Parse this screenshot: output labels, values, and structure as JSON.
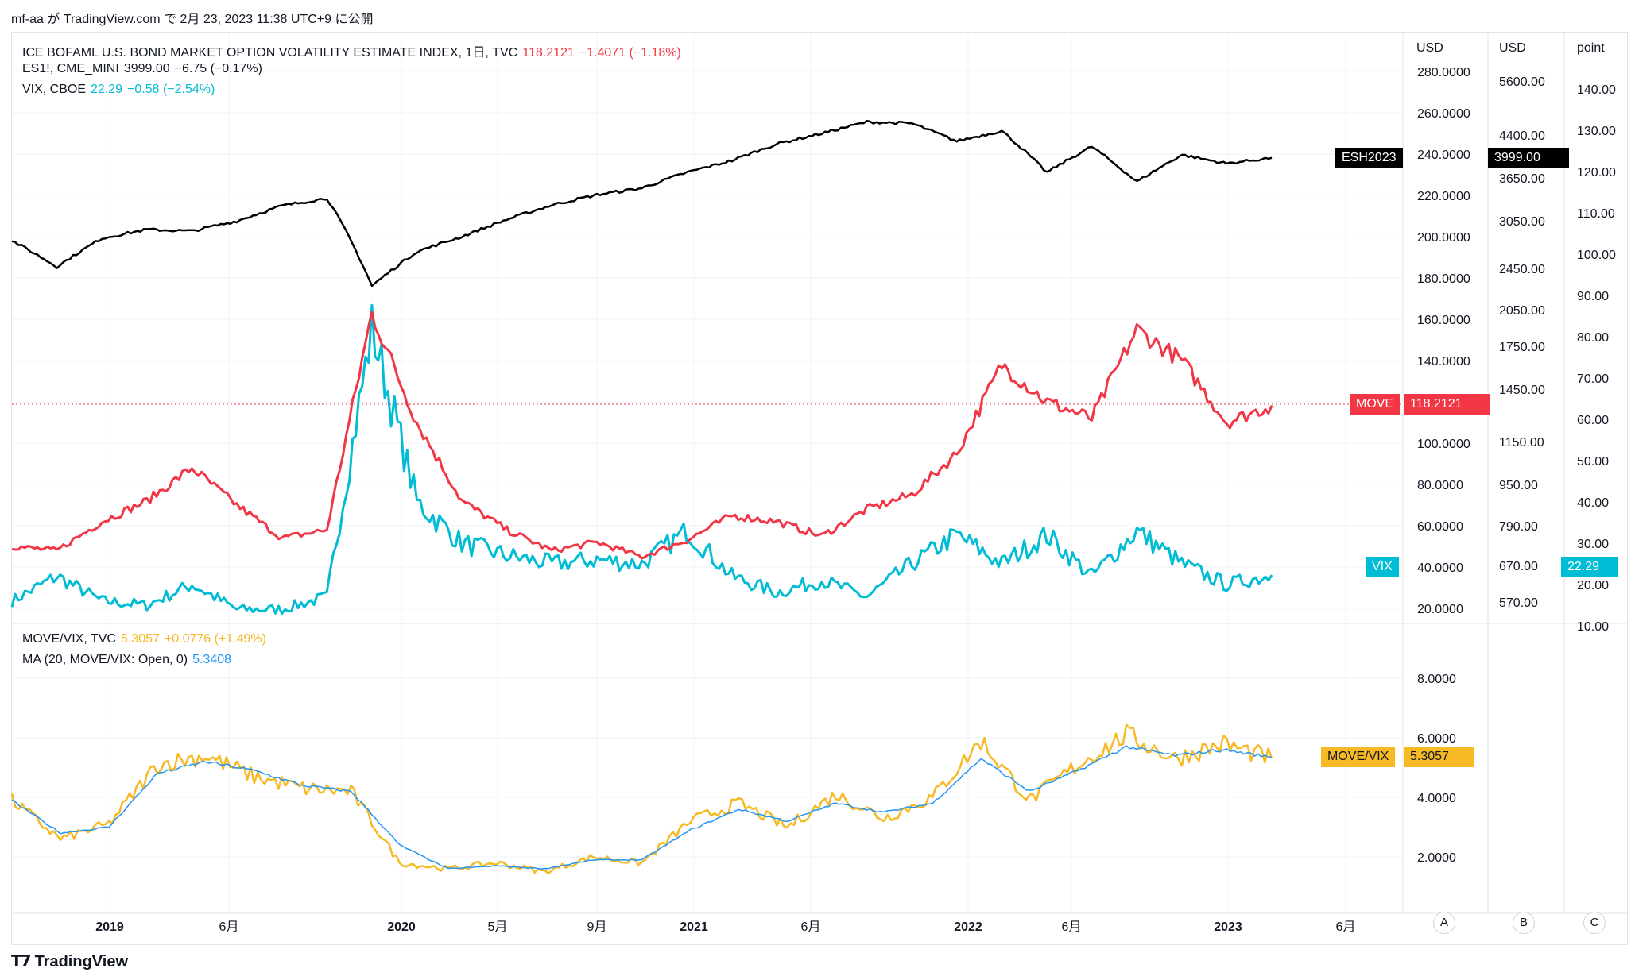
{
  "header": {
    "text": "mf-aa が TradingView.com で 2月 23, 2023 11:38 UTC+9 に公開"
  },
  "legend_top": [
    {
      "name": "ICE BOFAML U.S. BOND MARKET OPTION VOLATILITY ESTIMATE INDEX, 1日, TVC",
      "value": "118.2121",
      "change": "−1.4071 (−1.18%)",
      "color": "#f23645"
    },
    {
      "name": "ES1!, CME_MINI",
      "value": "3999.00",
      "change": "−6.75 (−0.17%)",
      "color": "#131722"
    },
    {
      "name": "VIX, CBOE",
      "value": "22.29",
      "change": "−0.58 (−2.54%)",
      "color": "#00bcd4"
    }
  ],
  "legend_bottom": [
    {
      "name": "MOVE/VIX, TVC",
      "value": "5.3057",
      "change": "+0.0776 (+1.49%)",
      "color": "#f7b924"
    },
    {
      "name": "MA (20, MOVE/VIX: Open, 0)",
      "value": "5.3408",
      "change": "",
      "color": "#2196f3"
    }
  ],
  "axes": {
    "move_scale_header": "USD",
    "es_scale_header": "USD",
    "vix_scale_header": "point",
    "move_ticks": [
      "280.0000",
      "260.0000",
      "240.0000",
      "220.0000",
      "200.0000",
      "180.0000",
      "160.0000",
      "140.0000",
      "120.0000",
      "100.0000",
      "80.0000",
      "60.0000",
      "40.0000",
      "20.0000"
    ],
    "es_ticks": [
      "5600.00",
      "4400.00",
      "3650.00",
      "3050.00",
      "2450.00",
      "2050.00",
      "1750.00",
      "1450.00",
      "1150.00",
      "950.00",
      "790.00",
      "670.00",
      "570.00"
    ],
    "vix_ticks": [
      "140.00",
      "130.00",
      "120.00",
      "110.00",
      "100.00",
      "90.00",
      "80.00",
      "70.00",
      "60.00",
      "50.00",
      "40.00",
      "30.00",
      "20.00",
      "10.00"
    ],
    "ratio_ticks": [
      "8.0000",
      "6.0000",
      "4.0000",
      "2.0000"
    ],
    "x_ticks": [
      {
        "label": "2019",
        "major": true
      },
      {
        "label": "6月",
        "major": false
      },
      {
        "label": "2020",
        "major": true
      },
      {
        "label": "5月",
        "major": false
      },
      {
        "label": "9月",
        "major": false
      },
      {
        "label": "2021",
        "major": true
      },
      {
        "label": "6月",
        "major": false
      },
      {
        "label": "2022",
        "major": true
      },
      {
        "label": "6月",
        "major": false
      },
      {
        "label": "2023",
        "major": true
      },
      {
        "label": "6月",
        "major": false
      }
    ]
  },
  "price_tags": {
    "es_label": "ESH2023",
    "es_value": "3999.00",
    "move_label": "MOVE",
    "move_value": "118.2121",
    "vix_label": "VIX",
    "vix_value": "22.29",
    "ratio_label": "MOVE/VIX",
    "ratio_value": "5.3057"
  },
  "scale_buttons": [
    "A",
    "B",
    "C"
  ],
  "footer": {
    "brand": "TradingView",
    "logo": "tradingview-logo-icon"
  },
  "colors": {
    "move": "#f23645",
    "es": "#000000",
    "vix": "#00bcd4",
    "ratio": "#f7b924",
    "ma": "#2196f3",
    "grid": "#f0f3fa"
  },
  "chart_data": [
    {
      "type": "line",
      "title": "ICE BOFAML U.S. BOND MARKET OPTION VOLATILITY ESTIMATE INDEX / ES1! / VIX",
      "x": [
        "2018-10",
        "2019-01",
        "2019-03",
        "2019-06",
        "2019-08",
        "2019-10",
        "2020-01",
        "2020-02",
        "2020-03",
        "2020-03",
        "2020-04",
        "2020-05",
        "2020-07",
        "2020-09",
        "2020-11",
        "2021-01",
        "2021-03",
        "2021-06",
        "2021-09",
        "2021-11",
        "2022-01",
        "2022-03",
        "2022-04",
        "2022-06",
        "2022-08",
        "2022-10",
        "2022-11",
        "2023-01",
        "2023-02"
      ],
      "series": [
        {
          "name": "ICE BOFAML U.S. BOND MARKET OPTION VOLATILITY ESTIMATE INDEX",
          "values": [
            50,
            48,
            62,
            72,
            88,
            70,
            54,
            58,
            163,
            110,
            72,
            58,
            48,
            52,
            45,
            53,
            65,
            62,
            55,
            68,
            75,
            95,
            138,
            120,
            112,
            155,
            140,
            110,
            118.2121
          ]
        },
        {
          "name": "ES1!",
          "values": [
            2780,
            2480,
            2810,
            2920,
            2900,
            3030,
            3240,
            3350,
            2280,
            2650,
            2830,
            3050,
            3250,
            3400,
            3500,
            3750,
            3950,
            4250,
            4450,
            4680,
            4650,
            4300,
            4500,
            3750,
            4200,
            3600,
            4050,
            3900,
            3999
          ]
        },
        {
          "name": "VIX",
          "values": [
            16,
            22,
            16,
            15,
            20,
            14,
            14,
            17,
            82,
            40,
            30,
            27,
            25,
            26,
            25,
            33,
            22,
            18,
            21,
            17,
            25,
            32,
            25,
            32,
            22,
            33,
            25,
            20,
            22.29
          ]
        }
      ],
      "ylim": [
        20,
        280
      ]
    },
    {
      "type": "line",
      "title": "MOVE/VIX",
      "x": [
        "2018-10",
        "2019-01",
        "2019-03",
        "2019-06",
        "2019-08",
        "2019-10",
        "2020-01",
        "2020-02",
        "2020-03",
        "2020-05",
        "2020-07",
        "2020-09",
        "2020-11",
        "2021-01",
        "2021-03",
        "2021-06",
        "2021-09",
        "2021-11",
        "2022-01",
        "2022-03",
        "2022-04",
        "2022-06",
        "2022-08",
        "2022-10",
        "2022-11",
        "2023-01",
        "2023-02"
      ],
      "series": [
        {
          "name": "MOVE/VIX",
          "values": [
            3.9,
            2.6,
            3.1,
            5.1,
            5.4,
            4.7,
            4.3,
            4.2,
            1.8,
            1.6,
            1.8,
            1.5,
            2.0,
            1.8,
            3.2,
            3.8,
            3.0,
            4.1,
            3.3,
            4.0,
            5.9,
            3.9,
            5.1,
            6.1,
            5.3,
            5.8,
            5.3057
          ]
        },
        {
          "name": "MA (20, MOVE/VIX: Open, 0)",
          "values": [
            3.9,
            2.8,
            3.0,
            4.8,
            5.2,
            4.9,
            4.4,
            4.2,
            2.4,
            1.6,
            1.7,
            1.6,
            1.9,
            1.9,
            2.9,
            3.6,
            3.2,
            3.8,
            3.5,
            3.8,
            5.3,
            4.2,
            4.9,
            5.7,
            5.4,
            5.6,
            5.3408
          ]
        }
      ],
      "ylim": [
        0,
        9
      ]
    }
  ]
}
